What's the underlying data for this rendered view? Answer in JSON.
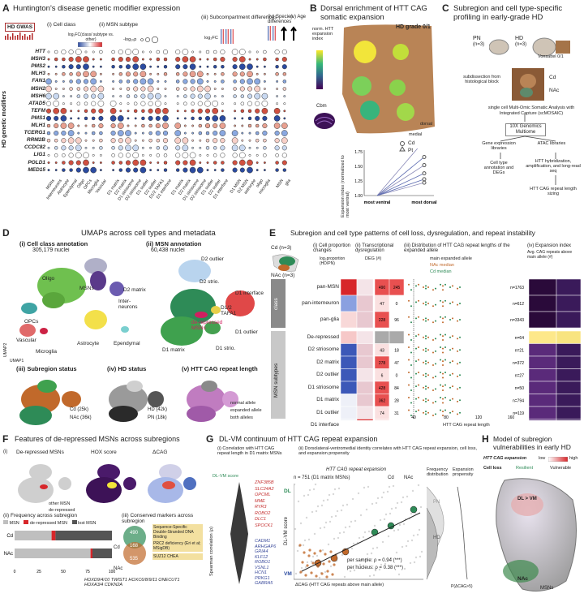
{
  "panels": {
    "A": {
      "label": "A",
      "title_prefix": "Huntington's disease genetic modifier expression",
      "hd_gwas": "HD GWAS",
      "sub_i": "(i) Cell class",
      "sub_ii": "(ii) MSN subtype",
      "sub_iii": "(iii) Subcompartment differences",
      "sub_iv": "(iv) Species differences",
      "sub_v": "(v) Age",
      "legend_log": "log₂FC(class/ subtype vs. other)",
      "legend_p": "-log₁₀p",
      "legend_logfc": "log₂FC",
      "ylabel": "HD genetic modifiers",
      "genes": [
        "HTT",
        "MSH3",
        "PMS2",
        "MLH3",
        "FANCD2",
        "MSH2",
        "MSH6",
        "ATAD5",
        "TEFM",
        "PMS1",
        "MLH1",
        "TCERG1",
        "RRM2B",
        "CCDC82",
        "LIG1",
        "POLD1",
        "MED15"
      ],
      "genes_display": [
        "HTT",
        "MSH3",
        "PMS2",
        "MLH3",
        "FAN1",
        "MSH2",
        "MSH6",
        "ATAD5",
        "TEFM",
        "PMS1",
        "MLH1",
        "TCERG1",
        "RRM2B",
        "CCDC82",
        "LIG1",
        "POLD1",
        "MED15"
      ],
      "cols_i": [
        "MSNs",
        "Interneurons",
        "Astrocyte",
        "Ependymal",
        "Oligo",
        "OPCs",
        "Microglia",
        "Vascular"
      ],
      "cols_ii": [
        "D1 matrix",
        "D2 matrix",
        "D1 striosome",
        "D2 striosome",
        "D1 outlier",
        "D2 outlier",
        "D1/2 TAFA1",
        "D1 interface"
      ],
      "cols_iii": [
        "D1 matrix",
        "D2 matrix",
        "D1 striosome",
        "D2 striosome",
        "D1 outlier",
        "D2 outlier",
        "D1 interface"
      ],
      "cols_iv": [
        "D1 MSN",
        "D2 MSN",
        "astrocyte",
        "oligo",
        "microglia"
      ],
      "cols_v": [
        "MSN",
        "glia"
      ]
    },
    "B": {
      "label": "B",
      "title": "Dorsal enrichment of HTT CAG somatic expansion",
      "hd_grade": "HD grade 0/1",
      "cbm": "Cbm",
      "ylabel_cbar": "norm. HTT expansion index",
      "dorsal": "dorsal",
      "medial": "medial",
      "legend_cd": "Cd",
      "legend_pt": "Pt",
      "y_axis": "Expansion index (normalized to most ventral)",
      "x_ticks": [
        "most ventral",
        "most dorsal"
      ],
      "y_ticks": [
        "1.00",
        "1.25",
        "1.50",
        "1.75"
      ]
    },
    "C": {
      "label": "C",
      "title": "Subregion and cell type-specific profiling in early-grade HD",
      "pn": "PN",
      "pn_n": "(n=3)",
      "hd": "HD",
      "hd_n": "(n=3)",
      "vonsattel": "Vonsattel 0/1",
      "subdissect": "subdissection from histological block",
      "cd": "Cd",
      "nac": "NAc",
      "smosaic": "single cell Multi-Omic Somatic Analysis with Integrated Capture (scMOSAIC)",
      "multiome": "10X Genomics Multiome",
      "gene_expr": "Gene expression libraries",
      "atac": "ATAC libraries",
      "annot": "Cell type annotation and DEGs",
      "htt_hyb": "HTT hybridization, amplification, and long-read seq",
      "cag_sizing": "HTT CAG repeat length sizing"
    },
    "D": {
      "label": "D",
      "title": "UMAPs across cell types and metadata",
      "i": "(i) Cell class annotation",
      "i_n": "305,179 nuclei",
      "ii": "(ii) MSN annotation",
      "ii_n": "60,438 nuclei",
      "iii": "(iii) Subregion status",
      "iv": "(iv) HD status",
      "v": "(v) HTT CAG repeat length",
      "umap1": "UMAP1",
      "umap2": "UMAP2",
      "clusters_i": [
        "MSNs",
        "Oligo",
        "OPCs",
        "Inter-neurons",
        "Astrocyte",
        "Vascular",
        "Microglia",
        "Ependymal"
      ],
      "clusters_ii": [
        "D2 outlier",
        "D2 strio.",
        "D2 matrix",
        "D1 interface",
        "D1/2 TAFA1",
        "de-repressed MSNs",
        "D1 matrix",
        "D1 strio.",
        "D1 outlier"
      ],
      "legend_iii": [
        "Cd (25k)",
        "NAc (36k)"
      ],
      "legend_iv": [
        "HD (42k)",
        "PN (18k)"
      ],
      "legend_v": [
        "normal allele",
        "expanded allele",
        "both alleles"
      ]
    },
    "E": {
      "label": "E",
      "title": "Subregion and cell type patterns of cell loss, dysregulation, and repeat instability",
      "cd_n": "Cd (n=3)",
      "nac_n": "NAc (n=3)",
      "sub_i": "(i) Cell proportion changes",
      "sub_ii": "(ii) Transcriptional dysregulation",
      "sub_iii": "(iii) Distribution of HTT CAG repeat lengths of the expanded allele",
      "sub_iv": "(iv) Expansion index",
      "log_prop": "log₂proportion (HD/PN)",
      "deg": "DEG (#)",
      "avg_cag": "Avg. CAG repeats above main allele (#)",
      "main_allele": "main expanded allele",
      "nac_median": "NAc median",
      "cd_median": "Cd median",
      "xlabel": "HTT CAG repeat length",
      "class_label": "class",
      "msn_label": "MSN subtypes",
      "rows": [
        {
          "name": "pan-MSN",
          "deg_cd": "490",
          "deg_nac": "245",
          "n": "n=1763"
        },
        {
          "name": "pan-interneuron",
          "deg_cd": "47",
          "deg_nac": "0",
          "n": "n=612"
        },
        {
          "name": "pan-glia",
          "deg_cd": "228",
          "deg_nac": "96",
          "n": "n=3343"
        },
        {
          "name": "De-repressed",
          "deg_cd": "",
          "deg_nac": "",
          "n": "n=64"
        },
        {
          "name": "D2 striosome",
          "deg_cd": "43",
          "deg_nac": "18",
          "n": "n=21"
        },
        {
          "name": "D2 matrix",
          "deg_cd": "278",
          "deg_nac": "47",
          "n": "n=372"
        },
        {
          "name": "D2 outlier",
          "deg_cd": "6",
          "deg_nac": "0",
          "n": "n=27"
        },
        {
          "name": "D1 striosome",
          "deg_cd": "428",
          "deg_nac": "84",
          "n": "n=50"
        },
        {
          "name": "D1 matrix",
          "deg_cd": "362",
          "deg_nac": "28",
          "n": "n=794"
        },
        {
          "name": "D1 outlier",
          "deg_cd": "74",
          "deg_nac": "31",
          "n": "n=119"
        },
        {
          "name": "D1 interface",
          "deg_cd": "0",
          "deg_nac": "3",
          "n": "n=281"
        }
      ],
      "x_ticks": [
        "40",
        "80",
        "120",
        "160"
      ]
    },
    "F": {
      "label": "F",
      "title": "Features of de-repressed MSNs across subregions",
      "i": "(i)",
      "derepressed": "De-repressed MSNs",
      "hox": "HOX score",
      "dcag": "ΔCAG",
      "other": "other MSN",
      "derep": "de-repressed",
      "ii": "(ii) Frequency across subregion",
      "iii": "(iii) Conserved markers across subregion",
      "bar_legend": [
        "MSN",
        "de-repressed MSN",
        "lost MSN"
      ],
      "bars": [
        "Cd",
        "NAc"
      ],
      "x_ticks": [
        "0",
        "25",
        "50",
        "75",
        "100"
      ],
      "venn": [
        "490",
        "168",
        "535"
      ],
      "venn_labels": [
        "Cd",
        "NAc"
      ],
      "markers": [
        "Sequence-Specific Double-Stranded DNA Binding",
        "PRC2 deficiency (Eri et al; MSigDB)",
        "SUZ12 CHEA"
      ],
      "genes": "HOXD9/4/10 TWIST1 HOXC6/8/9/11 ONECUT1 HOXA3/4 CDKN2A"
    },
    "G": {
      "label": "G",
      "title": "DL-VM continuum of HTT CAG repeat expansion",
      "i": "(i) Correlation with HTT CAG repeat length in D1 matrix MSNs",
      "ii": "(ii) Dorsolateral-ventromedial identity correlates with HTT CAG repeat expansion, cell loss, and expansion propensity",
      "score": "DL-VM score",
      "ylabel": "Spearman correlation (ρ)",
      "top_genes": [
        "ZNF385B",
        "SLC24A2",
        "OPCML",
        "MME",
        "RYR3",
        "ROBO2",
        "DLC1",
        "SPOCK1"
      ],
      "bottom_genes": [
        "CADM1",
        "ARHGAP6",
        "GRIA4",
        "KLF12",
        "ROBO1",
        "VSNL1",
        "HCN1",
        "PRKG1",
        "GABRA5"
      ],
      "sub_scatter": "HTT CAG repeat expansion",
      "n": "n = 751 (D1 matrix MSNs)",
      "cd": "Cd",
      "nac": "NAc",
      "ylabel2": "DL-VM score",
      "dl": "DL",
      "vm": "VM",
      "xlabel": "ΔCAG (HTT CAG repeats above main allele)",
      "stats1": "per sample: ρ = 0.94 (***)",
      "stats2": "per nucleus: ρ = 0.38 (***)",
      "freq": "Frequency distribution",
      "prop": "Expansion propensity",
      "pn": "PN",
      "hd": "HD",
      "pcag": "P(ΔCAG>5)"
    },
    "H": {
      "label": "H",
      "title": "Model of subregion vulnerabilities in early HD",
      "expansion": "HTT CAG expansion",
      "low": "low",
      "high": "high",
      "cell_loss": "Cell loss",
      "resilient": "Resilient",
      "vulnerable": "Vulnerable",
      "dl_vm": "DL > VM",
      "nac": "NAc",
      "msns": "MSNs"
    }
  },
  "colors": {
    "cd": "#2e8b57",
    "nac": "#c1692b",
    "red": "#d7262a",
    "blue": "#2b4ba0",
    "yellow": "#f2e53a",
    "viridis_dark": "#3d1257"
  }
}
